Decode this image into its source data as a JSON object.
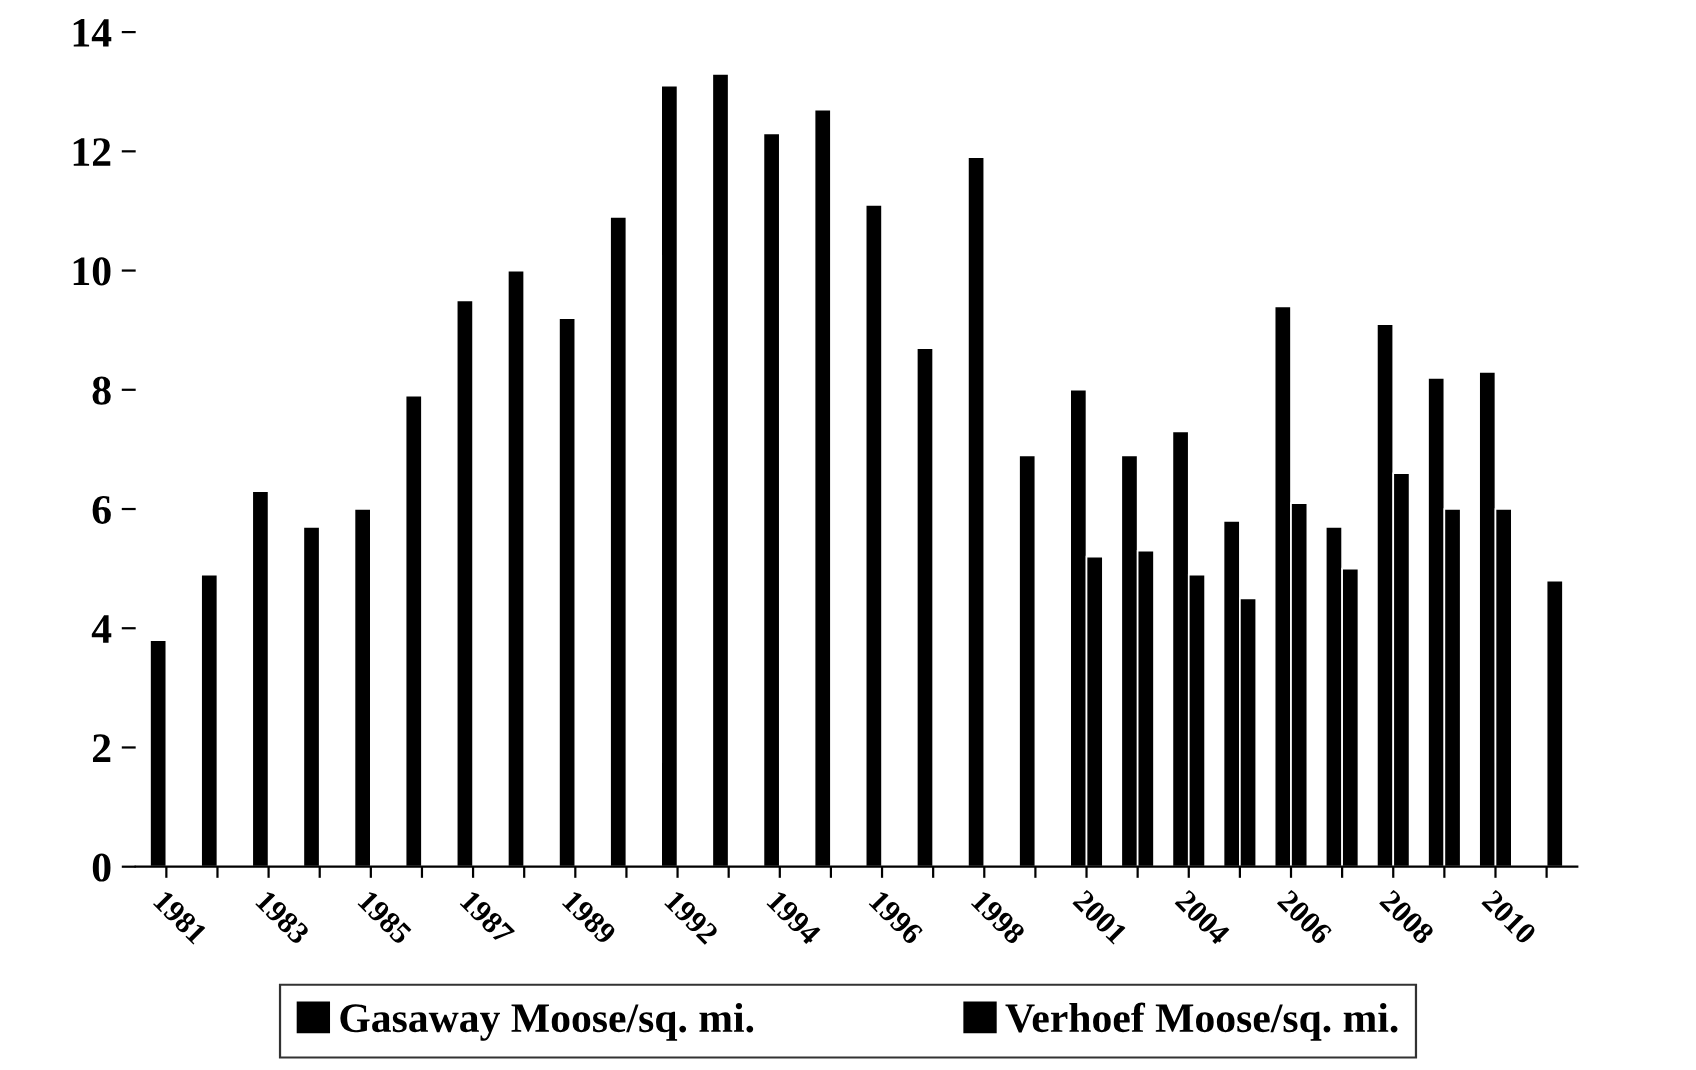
{
  "chart_data": {
    "type": "bar",
    "categories": [
      "1981",
      null,
      "1983",
      null,
      "1985",
      null,
      "1987",
      null,
      "1989",
      null,
      "1992",
      null,
      "1994",
      null,
      "1996",
      null,
      "1998",
      null,
      "2001",
      null,
      "2004",
      null,
      "2006",
      null,
      "2008",
      null,
      "2010",
      null
    ],
    "series": [
      {
        "name": "Gasaway Moose/sq. mi.",
        "color": "#000000",
        "values": [
          3.8,
          4.9,
          6.3,
          5.7,
          6.0,
          7.9,
          9.5,
          10.0,
          9.2,
          10.9,
          13.1,
          13.3,
          12.3,
          12.7,
          11.1,
          8.7,
          11.9,
          6.9,
          8.0,
          6.9,
          7.3,
          5.8,
          9.4,
          5.7,
          9.1,
          8.2,
          8.3,
          null
        ]
      },
      {
        "name": "Verhoef Moose/sq. mi.",
        "color": "#000000",
        "values": [
          null,
          null,
          null,
          null,
          null,
          null,
          null,
          null,
          null,
          null,
          null,
          null,
          null,
          null,
          null,
          null,
          null,
          null,
          5.2,
          5.3,
          4.9,
          4.5,
          6.1,
          5.0,
          6.6,
          6.0,
          6.0,
          4.8
        ]
      }
    ],
    "ylim": [
      0,
      14
    ],
    "yticks": [
      0,
      2,
      4,
      6,
      8,
      10,
      12,
      14
    ],
    "grid": false,
    "legend": "bottom"
  }
}
